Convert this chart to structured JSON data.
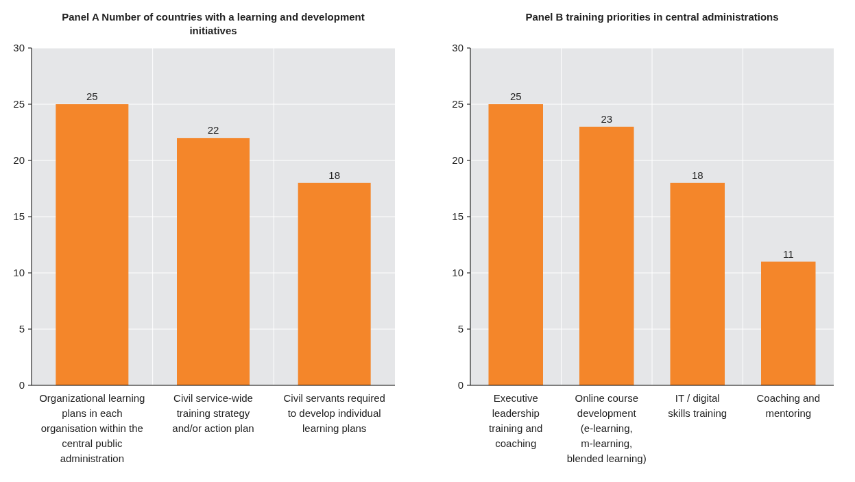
{
  "chart_data": [
    {
      "type": "bar",
      "title": "Panel A Number of countries with a learning and development initiatives",
      "categories": [
        "Organizational learning plans in each organisation within the central public administration",
        "Civil service-wide training strategy and/or action plan",
        "Civil servants required to develop individual learning plans"
      ],
      "values": [
        25,
        22,
        18
      ],
      "color": "#f4862a",
      "ylim": [
        0,
        30
      ],
      "yticks": [
        0,
        5,
        10,
        15,
        20,
        25,
        30
      ],
      "grid": true,
      "data_labels": true
    },
    {
      "type": "bar",
      "title": "Panel B training priorities in central administrations",
      "categories": [
        "Executive leadership training and coaching",
        "Online course development (e-learning, m-learning, blended learning)",
        "IT / digital skills training",
        "Coaching and mentoring"
      ],
      "values": [
        25,
        23,
        18,
        11
      ],
      "color": "#f4862a",
      "ylim": [
        0,
        30
      ],
      "yticks": [
        0,
        5,
        10,
        15,
        20,
        25,
        30
      ],
      "grid": true,
      "data_labels": true
    }
  ]
}
